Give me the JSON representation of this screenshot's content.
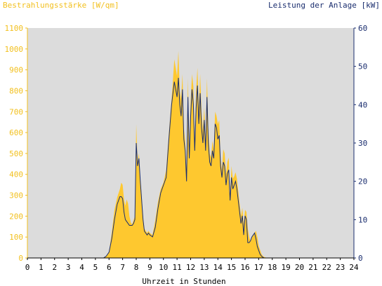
{
  "chart_data": {
    "type": "area",
    "left_title": "Bestrahlungsstärke [W/qm]",
    "right_title": "Leistung der Anlage [kW]",
    "xlabel": "Uhrzeit in Stunden",
    "xlim": [
      0,
      24
    ],
    "ylim_left": [
      0,
      1100
    ],
    "ylim_right": [
      0,
      60
    ],
    "x_ticks": [
      0,
      1,
      2,
      3,
      4,
      5,
      6,
      7,
      8,
      9,
      10,
      11,
      12,
      13,
      14,
      15,
      16,
      17,
      18,
      19,
      20,
      21,
      22,
      23,
      24
    ],
    "y_ticks_left": [
      0,
      100,
      200,
      300,
      400,
      500,
      600,
      700,
      800,
      900,
      1000,
      1100
    ],
    "y_ticks_right": [
      0,
      10,
      20,
      30,
      40,
      50,
      60
    ],
    "grid": false,
    "colors": {
      "plot_background": "#dcdcdc",
      "irradiance_fill": "#fec82f",
      "power_line": "#1a2d6e",
      "left_axis": "#f2c01f",
      "right_axis": "#1a2d6e"
    },
    "series": [
      {
        "name": "Bestrahlungsstärke [W/qm]",
        "axis": "left",
        "type": "area",
        "x": [
          0,
          5.6,
          5.8,
          6.0,
          6.2,
          6.4,
          6.6,
          6.8,
          6.9,
          7.0,
          7.1,
          7.2,
          7.3,
          7.4,
          7.5,
          7.6,
          7.7,
          7.8,
          7.9,
          8.0,
          8.1,
          8.2,
          8.3,
          8.4,
          8.5,
          8.6,
          8.7,
          8.8,
          8.9,
          9.0,
          9.2,
          9.4,
          9.6,
          9.8,
          10.0,
          10.2,
          10.4,
          10.6,
          10.8,
          11.0,
          11.1,
          11.2,
          11.3,
          11.4,
          11.5,
          11.6,
          11.7,
          11.8,
          11.9,
          12.0,
          12.1,
          12.2,
          12.3,
          12.4,
          12.5,
          12.6,
          12.7,
          12.8,
          12.9,
          13.0,
          13.1,
          13.2,
          13.3,
          13.4,
          13.5,
          13.6,
          13.7,
          13.8,
          13.9,
          14.0,
          14.1,
          14.2,
          14.3,
          14.4,
          14.5,
          14.6,
          14.7,
          14.8,
          14.9,
          15.0,
          15.1,
          15.2,
          15.3,
          15.4,
          15.5,
          15.6,
          15.7,
          15.8,
          15.9,
          16.0,
          16.1,
          16.2,
          16.3,
          16.4,
          16.5,
          16.6,
          16.7,
          16.8,
          16.9,
          17.0,
          17.1,
          17.2,
          17.3,
          17.4,
          17.6,
          17.8,
          18.0,
          18.2,
          18.4,
          18.6,
          18.8,
          19.0,
          19.2,
          19.4,
          19.6,
          19.8,
          20.0,
          24
        ],
        "values": [
          0,
          0,
          10,
          30,
          120,
          230,
          290,
          330,
          360,
          350,
          280,
          250,
          280,
          260,
          200,
          170,
          160,
          180,
          200,
          640,
          460,
          500,
          380,
          300,
          200,
          140,
          130,
          120,
          130,
          120,
          110,
          180,
          270,
          330,
          360,
          420,
          600,
          760,
          950,
          870,
          990,
          800,
          760,
          880,
          620,
          560,
          400,
          860,
          520,
          750,
          880,
          820,
          560,
          800,
          910,
          720,
          880,
          700,
          610,
          720,
          560,
          860,
          620,
          500,
          480,
          560,
          520,
          700,
          680,
          640,
          660,
          480,
          420,
          520,
          500,
          400,
          460,
          480,
          300,
          440,
          380,
          390,
          410,
          380,
          320,
          260,
          200,
          240,
          160,
          230,
          220,
          140,
          100,
          80,
          100,
          110,
          120,
          130,
          100,
          60,
          40,
          20,
          10,
          5,
          0,
          0,
          0,
          0,
          0,
          0,
          0,
          0,
          0,
          0,
          0,
          0,
          0,
          0
        ]
      },
      {
        "name": "Leistung der Anlage [kW]",
        "axis": "right",
        "type": "line",
        "x": [
          0,
          5.6,
          5.8,
          6.0,
          6.2,
          6.4,
          6.6,
          6.8,
          6.9,
          7.0,
          7.1,
          7.2,
          7.3,
          7.4,
          7.5,
          7.6,
          7.7,
          7.8,
          7.9,
          8.0,
          8.1,
          8.2,
          8.3,
          8.4,
          8.5,
          8.6,
          8.7,
          8.8,
          8.9,
          9.0,
          9.2,
          9.4,
          9.6,
          9.8,
          10.0,
          10.2,
          10.4,
          10.6,
          10.8,
          11.0,
          11.1,
          11.2,
          11.3,
          11.4,
          11.5,
          11.6,
          11.7,
          11.8,
          11.9,
          12.0,
          12.1,
          12.2,
          12.3,
          12.4,
          12.5,
          12.6,
          12.7,
          12.8,
          12.9,
          13.0,
          13.1,
          13.2,
          13.3,
          13.4,
          13.5,
          13.6,
          13.7,
          13.8,
          13.9,
          14.0,
          14.1,
          14.2,
          14.3,
          14.4,
          14.5,
          14.6,
          14.7,
          14.8,
          14.9,
          15.0,
          15.1,
          15.2,
          15.3,
          15.4,
          15.5,
          15.6,
          15.7,
          15.8,
          15.9,
          16.0,
          16.1,
          16.2,
          16.3,
          16.4,
          16.5,
          16.6,
          16.7,
          16.8,
          16.9,
          17.0,
          17.1,
          17.2,
          17.3,
          17.4,
          17.6,
          17.8,
          18.0,
          18.2,
          18.4,
          18.6,
          18.8,
          19.0,
          19.2,
          19.4,
          19.6,
          19.8,
          20.0,
          24
        ],
        "values": [
          0,
          0,
          0.5,
          1.5,
          5,
          10,
          14,
          16,
          16,
          15.5,
          12,
          10,
          9.5,
          9,
          8.5,
          8.5,
          8.5,
          9,
          10,
          30,
          24,
          26,
          20,
          15,
          10,
          7,
          6.5,
          6,
          6.5,
          6,
          5.5,
          8,
          13,
          17,
          19,
          21,
          31,
          40,
          46,
          42,
          47,
          40,
          37,
          44,
          31,
          28,
          20,
          42,
          26,
          37,
          44,
          40,
          28,
          39,
          45,
          35,
          43,
          34,
          30,
          36,
          28,
          42,
          30,
          25,
          24,
          28,
          26,
          35,
          34,
          31,
          32,
          24,
          21,
          25,
          24,
          19,
          22,
          23,
          15,
          21,
          18,
          19,
          20,
          18,
          15,
          12,
          9,
          11,
          6,
          11,
          10,
          4,
          4,
          4.5,
          5.5,
          6,
          6.5,
          5,
          3,
          2,
          1,
          0.5,
          0.2,
          0,
          0,
          0,
          0,
          0,
          0,
          0,
          0,
          0,
          0,
          0,
          0,
          0,
          0,
          0
        ]
      }
    ]
  }
}
